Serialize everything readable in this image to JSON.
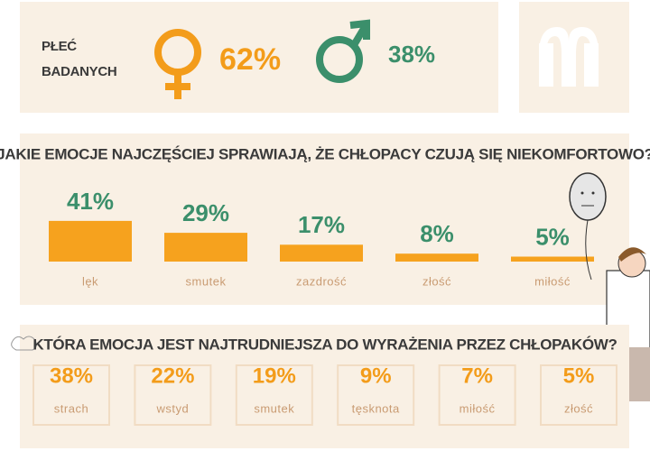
{
  "gender": {
    "label_line1": "PŁEĆ",
    "label_line2": "BADANYCH",
    "female": "62%",
    "male": "38%"
  },
  "chart_data": {
    "type": "bar",
    "title": "JAKIE EMOCJE NAJCZĘŚCIEJ SPRAWIAJĄ, ŻE CHŁOPACY CZUJĄ SIĘ NIEKOMFORTOWO?",
    "categories": [
      "lęk",
      "smutek",
      "zazdrość",
      "złość",
      "miłość"
    ],
    "values": [
      41,
      29,
      17,
      8,
      5
    ],
    "value_labels": [
      "41%",
      "29%",
      "17%",
      "8%",
      "5%"
    ],
    "color": "#f6a21e",
    "label_color": "#3b8f6b"
  },
  "hardest": {
    "title": "KTÓRA EMOCJA JEST NAJTRUDNIEJSZA DO WYRAŻENIA PRZEZ CHŁOPAKÓW?",
    "items": [
      {
        "value": "38%",
        "label": "strach"
      },
      {
        "value": "22%",
        "label": "wstyd"
      },
      {
        "value": "19%",
        "label": "smutek"
      },
      {
        "value": "9%",
        "label": "tęsknota"
      },
      {
        "value": "7%",
        "label": "miłość"
      },
      {
        "value": "5%",
        "label": "złość"
      }
    ]
  }
}
